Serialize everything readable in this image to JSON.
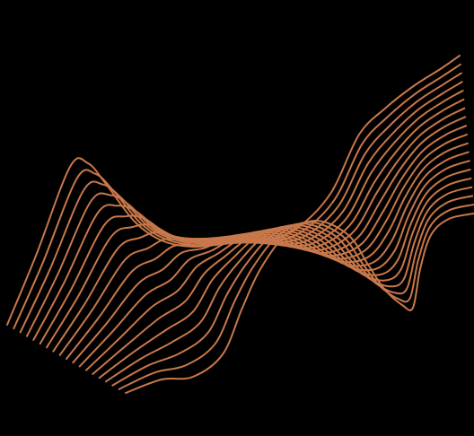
{
  "artwork": {
    "subject": "wave-line-art",
    "line_count": 19,
    "colors": {
      "background": "#000000",
      "line": "#C8784A"
    }
  }
}
